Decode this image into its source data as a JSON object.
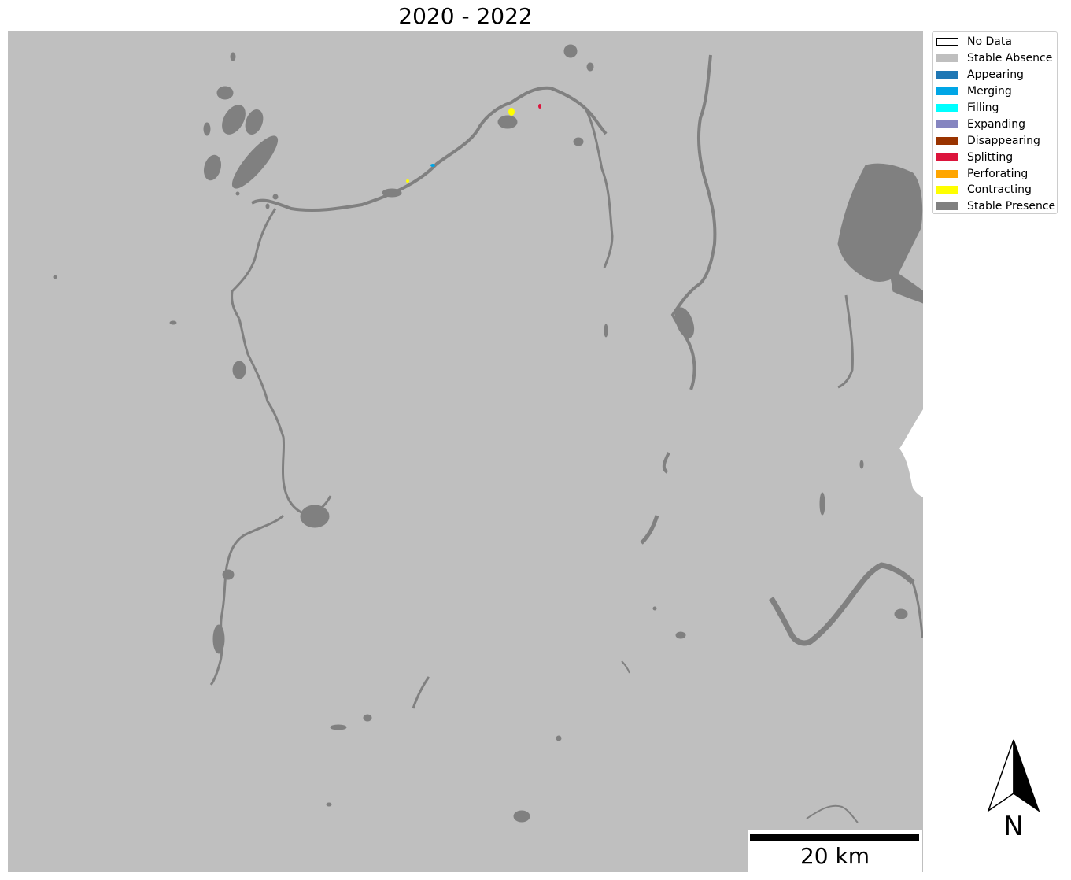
{
  "title": "2020 - 2022",
  "colors": {
    "background": "#bfbfbf",
    "stable_presence": "#808080",
    "no_data": "#ffffff"
  },
  "legend": {
    "items": [
      {
        "label": "No Data",
        "color": "#ffffff",
        "icon": "no-data-swatch"
      },
      {
        "label": "Stable Absence",
        "color": "#bfbfbf",
        "icon": "stable-absence-swatch"
      },
      {
        "label": "Appearing",
        "color": "#1f77b4",
        "icon": "appearing-swatch"
      },
      {
        "label": "Merging",
        "color": "#00a6e6",
        "icon": "merging-swatch"
      },
      {
        "label": "Filling",
        "color": "#00ffff",
        "icon": "filling-swatch"
      },
      {
        "label": "Expanding",
        "color": "#8585c0",
        "icon": "expanding-swatch"
      },
      {
        "label": "Disappearing",
        "color": "#993300",
        "icon": "disappearing-swatch"
      },
      {
        "label": "Splitting",
        "color": "#dc143c",
        "icon": "splitting-swatch"
      },
      {
        "label": "Perforating",
        "color": "#ffa500",
        "icon": "perforating-swatch"
      },
      {
        "label": "Contracting",
        "color": "#ffff00",
        "icon": "contracting-swatch"
      },
      {
        "label": "Stable Presence",
        "color": "#808080",
        "icon": "stable-presence-swatch"
      }
    ]
  },
  "scale_bar": {
    "label": "20 km"
  },
  "north_arrow": {
    "label": "N",
    "icon": "north-arrow-icon"
  }
}
